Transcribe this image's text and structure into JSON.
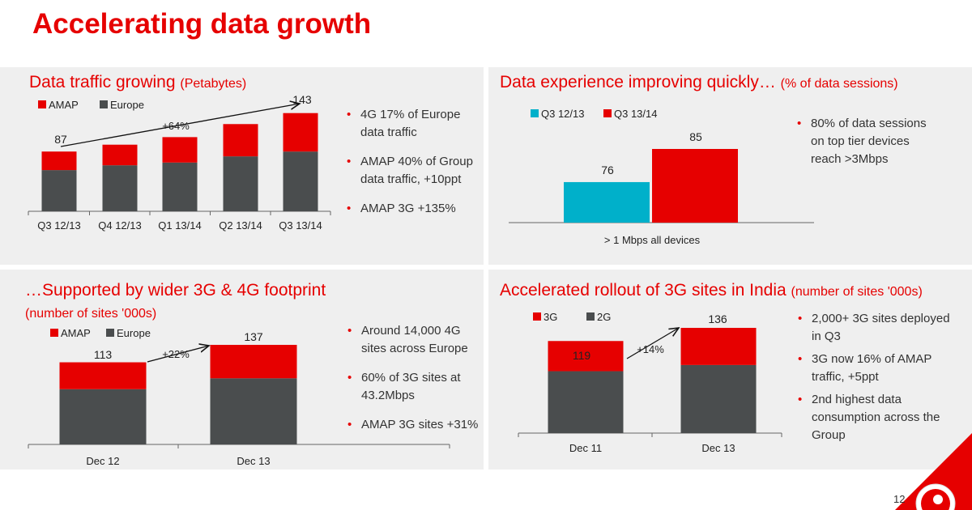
{
  "title": "Accelerating data growth",
  "page_number": "12",
  "colors": {
    "red": "#e60000",
    "dark": "#4a4d4e",
    "teal": "#00b0ca"
  },
  "panels": {
    "tl": {
      "title": "Data traffic growing",
      "subtitle": "(Petabytes)",
      "bullets": [
        "4G 17% of Europe data traffic",
        "AMAP 40% of Group data traffic, +10ppt",
        "AMAP 3G +135%"
      ]
    },
    "tr": {
      "title": "Data experience improving quickly…",
      "subtitle": "(% of data sessions)",
      "bullets": [
        "80% of data sessions on top tier devices reach >3Mbps"
      ]
    },
    "bl": {
      "title": "…Supported by wider 3G & 4G footprint",
      "subtitle": "(number of sites '000s)",
      "bullets": [
        "Around 14,000 4G sites across Europe",
        "60% of 3G sites at 43.2Mbps",
        "AMAP 3G sites +31%"
      ]
    },
    "br": {
      "title": "Accelerated rollout of 3G sites in India",
      "subtitle": "(number of sites '000s)",
      "bullets": [
        "2,000+ 3G sites deployed in Q3",
        "3G now 16% of AMAP traffic, +5ppt",
        "2nd highest data consumption across the Group"
      ]
    }
  },
  "chart_data": [
    {
      "type": "bar",
      "stacked": true,
      "categories": [
        "Q3 12/13",
        "Q4 12/13",
        "Q1 13/14",
        "Q2 13/14",
        "Q3 13/14"
      ],
      "series": [
        {
          "name": "Europe",
          "color": "#4a4d4e",
          "values": [
            60,
            67,
            71,
            80,
            87
          ]
        },
        {
          "name": "AMAP",
          "color": "#e60000",
          "values": [
            27,
            30,
            37,
            47,
            56
          ]
        }
      ],
      "labels": [
        {
          "category": "Q3 12/13",
          "text": "87"
        },
        {
          "category": "Q3 13/14",
          "text": "143"
        }
      ],
      "annotation": "+64%",
      "legend": "top-left",
      "ylim": [
        0,
        150
      ],
      "grid": false
    },
    {
      "type": "bar",
      "categories": [
        "> 1 Mbps all devices"
      ],
      "series": [
        {
          "name": "Q3 12/13",
          "color": "#00b0ca",
          "values": [
            76
          ]
        },
        {
          "name": "Q3 13/14",
          "color": "#e60000",
          "values": [
            85
          ]
        }
      ],
      "legend": "top-left",
      "ylim": [
        65,
        95
      ],
      "grid": false
    },
    {
      "type": "bar",
      "stacked": true,
      "categories": [
        "Dec 12",
        "Dec 13"
      ],
      "series": [
        {
          "name": "Europe",
          "color": "#4a4d4e",
          "values": [
            76,
            91
          ]
        },
        {
          "name": "AMAP",
          "color": "#e60000",
          "values": [
            37,
            46
          ]
        }
      ],
      "labels": [
        {
          "category": "Dec 12",
          "text": "113"
        },
        {
          "category": "Dec 13",
          "text": "137"
        }
      ],
      "annotation": "+22%",
      "legend": "top-left",
      "ylim": [
        0,
        140
      ],
      "grid": false
    },
    {
      "type": "bar",
      "stacked": true,
      "categories": [
        "Dec 11",
        "Dec 13"
      ],
      "series": [
        {
          "name": "2G",
          "color": "#4a4d4e",
          "values": [
            80,
            88
          ]
        },
        {
          "name": "3G",
          "color": "#e60000",
          "values": [
            39,
            48
          ]
        }
      ],
      "labels": [
        {
          "category": "Dec 11",
          "text": "119"
        },
        {
          "category": "Dec 13",
          "text": "136"
        }
      ],
      "annotation": "+14%",
      "legend": "top-left",
      "ylim": [
        0,
        140
      ],
      "grid": false
    }
  ]
}
